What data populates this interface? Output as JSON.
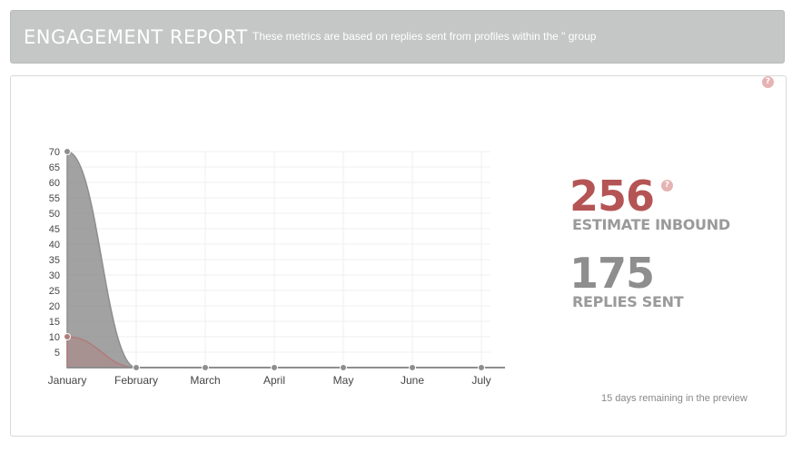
{
  "header": {
    "title": "ENGAGEMENT REPORT",
    "subtitle": "These metrics are based on replies sent from profiles within the \" group"
  },
  "help_icon_glyph": "?",
  "metrics": {
    "estimate_inbound": {
      "value": "256",
      "label": "ESTIMATE INBOUND",
      "color": "#b55454"
    },
    "replies_sent": {
      "value": "175",
      "label": "REPLIES SENT",
      "color": "#8e8e8e"
    }
  },
  "preview_note": "15 days remaining in the preview",
  "chart_data": {
    "type": "area",
    "categories": [
      "January",
      "February",
      "March",
      "April",
      "May",
      "June",
      "July"
    ],
    "y_ticks": [
      5,
      10,
      15,
      20,
      25,
      30,
      35,
      40,
      45,
      50,
      55,
      60,
      65,
      70
    ],
    "ylim": [
      0,
      70
    ],
    "grid": true,
    "series": [
      {
        "values": [
          70,
          0,
          0,
          0,
          0,
          0,
          0
        ],
        "color": "#8e8e8e"
      },
      {
        "values": [
          10,
          0,
          0,
          0,
          0,
          0,
          0
        ],
        "color": "#b07c7c"
      }
    ]
  }
}
